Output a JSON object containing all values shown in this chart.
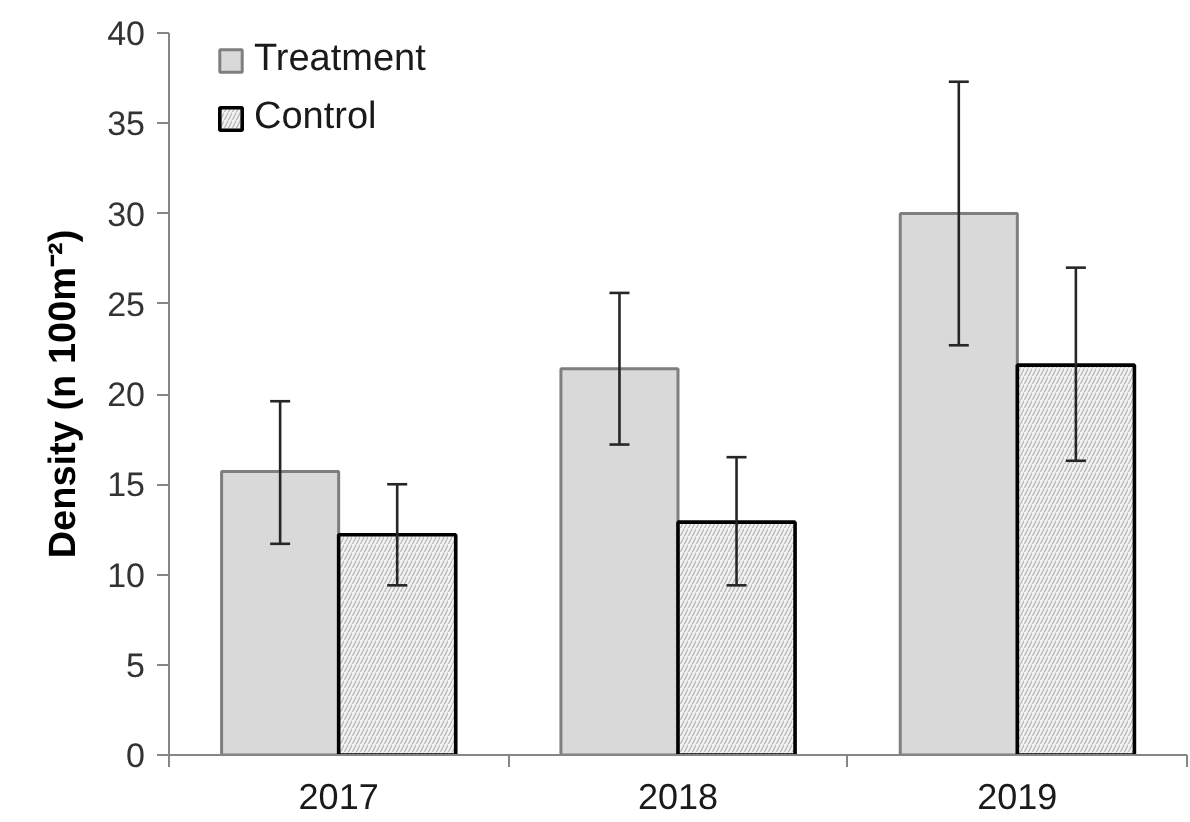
{
  "chart_data": {
    "type": "bar",
    "categories": [
      "2017",
      "2018",
      "2019"
    ],
    "series": [
      {
        "name": "Treatment",
        "color": "#d9d9d9",
        "values": [
          15.7,
          21.4,
          30.0
        ],
        "errors": [
          [
            11.7,
            19.6
          ],
          [
            17.2,
            25.6
          ],
          [
            22.7,
            37.3
          ]
        ]
      },
      {
        "name": "Control",
        "color": "#f2f2f2",
        "values": [
          12.2,
          12.9,
          21.6
        ],
        "errors": [
          [
            9.4,
            15.0
          ],
          [
            9.4,
            16.5
          ],
          [
            16.3,
            27.0
          ]
        ]
      }
    ],
    "ylabel": "Density (n 100m⁻²)",
    "ylim": [
      0,
      40
    ],
    "yticks": [
      0,
      5,
      10,
      15,
      20,
      25,
      30,
      35,
      40
    ],
    "legend": "top left"
  }
}
